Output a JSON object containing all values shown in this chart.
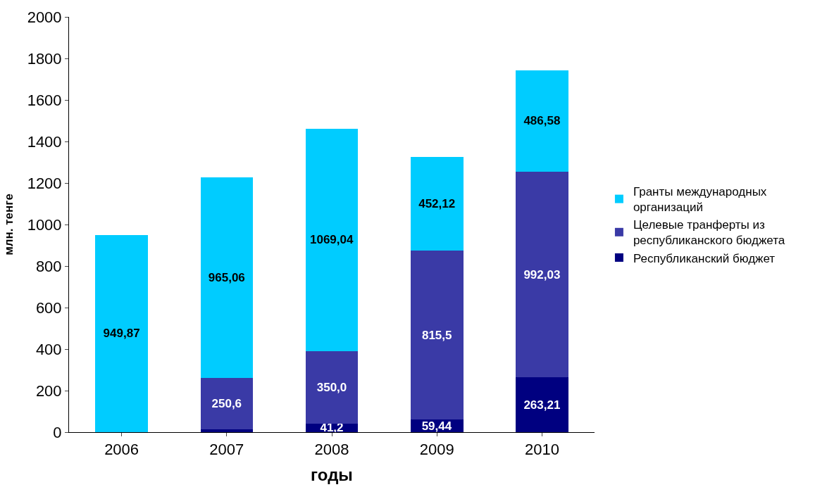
{
  "chart_data": {
    "type": "bar",
    "stacked": true,
    "xlabel": "годы",
    "ylabel": "млн. тенге",
    "categories": [
      "2006",
      "2007",
      "2008",
      "2009",
      "2010"
    ],
    "series": [
      {
        "name": "Республиканский бюджет",
        "color": "#000080",
        "values": [
          null,
          12,
          41.2,
          59.44,
          263.21
        ],
        "value_labels": [
          null,
          null,
          "41,2",
          "59,44",
          "263,21"
        ]
      },
      {
        "name": "Целевые транферты из республиканского бюджета",
        "color": "#3a3aa6",
        "values": [
          null,
          250.6,
          350.0,
          815.5,
          992.03
        ],
        "value_labels": [
          null,
          "250,6",
          "350,0",
          "815,5",
          "992,03"
        ]
      },
      {
        "name": "Гранты международных организаций",
        "color": "#00ccff",
        "values": [
          949.87,
          965.06,
          1069.04,
          452.12,
          486.58
        ],
        "value_labels": [
          "949,87",
          "965,06",
          "1069,04",
          "452,12",
          "486,58"
        ]
      }
    ],
    "ylim": [
      0,
      2000
    ],
    "yticks": [
      0,
      200,
      400,
      600,
      800,
      1000,
      1200,
      1400,
      1600,
      1800,
      2000
    ],
    "legend": "right"
  }
}
